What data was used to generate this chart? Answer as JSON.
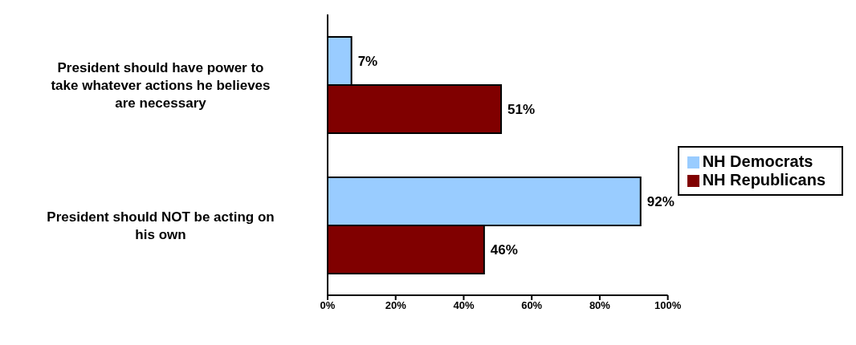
{
  "chart_data": {
    "type": "bar",
    "orientation": "horizontal",
    "categories": [
      "President should have power to take whatever actions he believes are necessary",
      "President should NOT be acting on his own"
    ],
    "series": [
      {
        "name": "NH Democrats",
        "color": "#99ccff",
        "values": [
          7,
          92
        ],
        "value_labels": [
          "7%",
          "92%"
        ]
      },
      {
        "name": "NH Republicans",
        "color": "#800000",
        "values": [
          51,
          46
        ],
        "value_labels": [
          "51%",
          "46%"
        ]
      }
    ],
    "xlim": [
      0,
      100
    ],
    "xticks": [
      {
        "value": 0,
        "label": "0%"
      },
      {
        "value": 20,
        "label": "20%"
      },
      {
        "value": 40,
        "label": "40%"
      },
      {
        "value": 60,
        "label": "60%"
      },
      {
        "value": 80,
        "label": "80%"
      },
      {
        "value": 100,
        "label": "100%"
      }
    ],
    "grid": false,
    "legend": "right"
  }
}
